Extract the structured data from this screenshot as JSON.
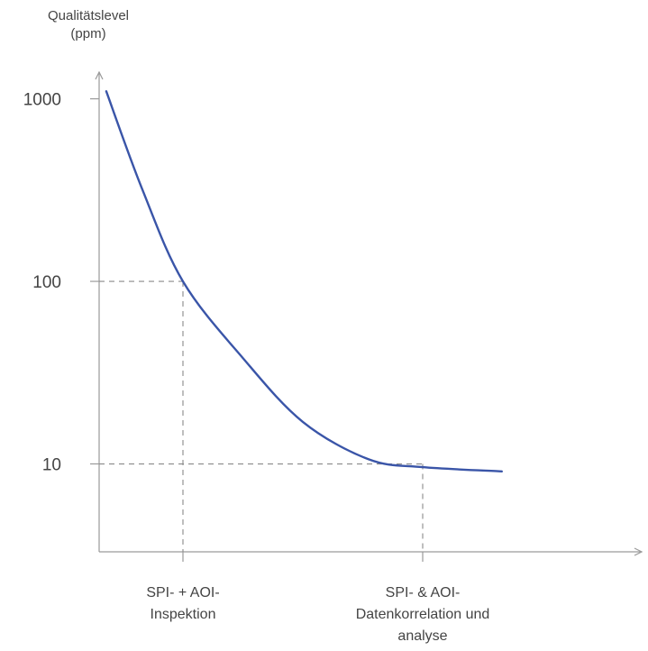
{
  "chart_data": {
    "type": "line",
    "title": "",
    "ylabel": [
      "Qualitätslevel",
      "(ppm)"
    ],
    "xlabel": "",
    "y_scale": "log",
    "ylim": [
      3.3,
      1400
    ],
    "y_ticks": [
      {
        "value": 1000,
        "label": "1000"
      },
      {
        "value": 100,
        "label": "100"
      },
      {
        "value": 10,
        "label": "10"
      }
    ],
    "x_ticks": [
      {
        "label_lines": [
          "SPI- + AOI-",
          "Inspektion"
        ]
      },
      {
        "label_lines": [
          "SPI- & AOI-",
          "Datenkorrelation und",
          "analyse"
        ]
      }
    ],
    "series": [
      {
        "color": "#3a55a8",
        "points": [
          {
            "x": 0.12,
            "y": 1100
          },
          {
            "x": 0.22,
            "y": 320
          },
          {
            "x": 0.3333,
            "y": 100
          },
          {
            "x": 0.5,
            "y": 38
          },
          {
            "x": 0.6667,
            "y": 17
          },
          {
            "x": 0.85,
            "y": 10.6
          },
          {
            "x": 1.0,
            "y": 9.6
          },
          {
            "x": 1.22,
            "y": 9.1
          }
        ]
      }
    ],
    "reference_lines": [
      {
        "x_tick": 0,
        "y": 100
      },
      {
        "x_tick": 1,
        "y": 10
      }
    ],
    "grid": false,
    "colors": {
      "axis": "#9a9a9a",
      "guide": "#8a8a8a",
      "curve": "#3a55a8",
      "text": "#444444"
    }
  }
}
